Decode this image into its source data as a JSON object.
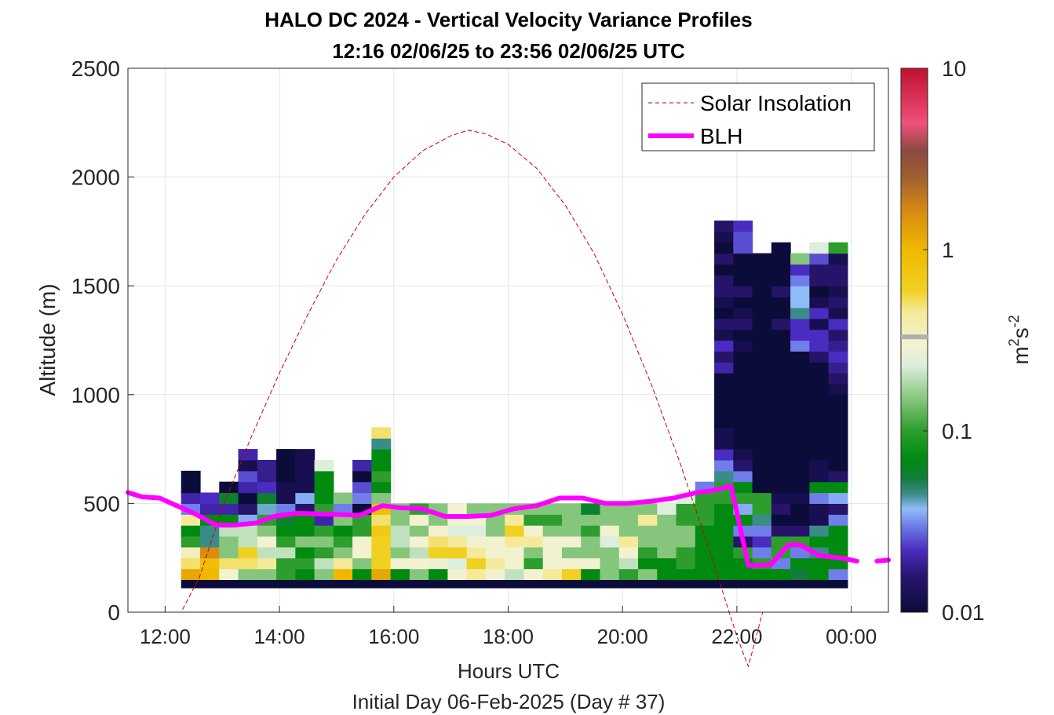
{
  "chart_data": {
    "type": "heatmap",
    "title": "HALO DC 2024 - Vertical Velocity Variance Profiles",
    "subtitle": "12:16 02/06/25 to 23:56 02/06/25  UTC",
    "xlabel": "Hours UTC",
    "xlabel2": "Initial Day 06-Feb-2025 (Day # 37)",
    "ylabel": "Altitude (m)",
    "xlim": [
      11.35,
      24.65
    ],
    "ylim": [
      0,
      2500
    ],
    "x_ticks": [
      {
        "value": 12,
        "label": "12:00"
      },
      {
        "value": 14,
        "label": "14:00"
      },
      {
        "value": 16,
        "label": "16:00"
      },
      {
        "value": 18,
        "label": "18:00"
      },
      {
        "value": 20,
        "label": "20:00"
      },
      {
        "value": 22,
        "label": "22:00"
      },
      {
        "value": 24,
        "label": "00:00"
      }
    ],
    "y_ticks": [
      {
        "value": 0,
        "label": "0"
      },
      {
        "value": 500,
        "label": "500"
      },
      {
        "value": 1000,
        "label": "1000"
      },
      {
        "value": 1500,
        "label": "1500"
      },
      {
        "value": 2000,
        "label": "2000"
      },
      {
        "value": 2500,
        "label": "2500"
      }
    ],
    "grid": true,
    "colorbar": {
      "label_base": "m",
      "label_exp1": "2",
      "label_mid": "s",
      "label_exp2": "-2",
      "scale": "log",
      "range": [
        0.01,
        10
      ],
      "ticks": [
        {
          "value": 0.01,
          "label": "0.01"
        },
        {
          "value": 0.1,
          "label": "0.1"
        },
        {
          "value": 1,
          "label": "1"
        },
        {
          "value": 10,
          "label": "10"
        }
      ],
      "color_stops": [
        {
          "v": 0.01,
          "c": "#0b0c3a"
        },
        {
          "v": 0.016,
          "c": "#2a1570"
        },
        {
          "v": 0.022,
          "c": "#4a2cc0"
        },
        {
          "v": 0.03,
          "c": "#6f7ee8"
        },
        {
          "v": 0.037,
          "c": "#8fbcf7"
        },
        {
          "v": 0.045,
          "c": "#3a8c88"
        },
        {
          "v": 0.055,
          "c": "#127c3a"
        },
        {
          "v": 0.07,
          "c": "#008a10"
        },
        {
          "v": 0.1,
          "c": "#2d9e2d"
        },
        {
          "v": 0.15,
          "c": "#85c67c"
        },
        {
          "v": 0.23,
          "c": "#dceedc"
        },
        {
          "v": 0.3,
          "c": "#f2f2d0"
        },
        {
          "v": 0.45,
          "c": "#f5ea9a"
        },
        {
          "v": 0.6,
          "c": "#f0d020"
        },
        {
          "v": 1.0,
          "c": "#f0b800"
        },
        {
          "v": 1.6,
          "c": "#d98c10"
        },
        {
          "v": 2.5,
          "c": "#a06030"
        },
        {
          "v": 3.5,
          "c": "#8a4a40"
        },
        {
          "v": 5.0,
          "c": "#f0507a"
        },
        {
          "v": 10.0,
          "c": "#c01030"
        }
      ],
      "gray_mark_value": 0.33,
      "gray_mark_color": "#b0b0b0"
    },
    "legend_position": "top-right",
    "legend": [
      {
        "name": "Solar Insolation",
        "style": "dashed",
        "color": "#cc0000"
      },
      {
        "name": "BLH",
        "style": "solid-thick",
        "color": "#ff00ff"
      }
    ],
    "series": [
      {
        "name": "Solar Insolation",
        "color": "#cc0000",
        "x": [
          11.35,
          12.28,
          12.6,
          13.0,
          13.5,
          14.0,
          14.5,
          15.0,
          15.5,
          16.0,
          16.5,
          17.0,
          17.3,
          17.6,
          18.0,
          18.5,
          19.0,
          19.5,
          20.0,
          20.5,
          21.0,
          21.5,
          22.0,
          22.2,
          22.45,
          24.65
        ],
        "y": [
          0,
          0,
          160,
          480,
          800,
          1100,
          1370,
          1620,
          1830,
          2000,
          2120,
          2190,
          2215,
          2200,
          2150,
          2040,
          1870,
          1650,
          1370,
          1050,
          690,
          300,
          -110,
          -250,
          0,
          0
        ]
      },
      {
        "name": "BLH",
        "color": "#ff00ff",
        "x": [
          11.35,
          11.6,
          11.9,
          12.5,
          12.9,
          13.2,
          13.6,
          13.9,
          14.3,
          14.9,
          15.4,
          15.8,
          16.1,
          16.5,
          16.9,
          17.3,
          17.7,
          18.1,
          18.5,
          18.9,
          19.3,
          19.7,
          20.1,
          20.5,
          20.9,
          21.3,
          21.6,
          21.9,
          22.2,
          22.45,
          22.6,
          22.9,
          23.1,
          23.45,
          23.8,
          24.1
        ],
        "y": [
          550,
          530,
          525,
          455,
          400,
          400,
          410,
          440,
          455,
          450,
          445,
          490,
          480,
          475,
          440,
          440,
          445,
          475,
          490,
          525,
          525,
          500,
          500,
          510,
          525,
          550,
          560,
          580,
          215,
          215,
          220,
          310,
          310,
          260,
          250,
          235
        ]
      },
      {
        "name": "BLH-end",
        "color": "#ff00ff",
        "x": [
          24.45,
          24.65
        ],
        "y": [
          235,
          240
        ]
      }
    ],
    "heatmap": {
      "x_start": 12.28,
      "column_width_hours": 0.333,
      "base_row_altitude": [
        110,
        150
      ],
      "base_row_value": 0.01,
      "row_height_m": 50,
      "row_start_m": 150,
      "columns": [
        {
          "col": 0,
          "values": [
            1.2,
            0.5,
            0.35,
            0.1,
            0.07,
            0.45,
            0.03,
            0.02,
            0.01,
            0.01
          ]
        },
        {
          "col": 1,
          "values": [
            1.0,
            0.9,
            1.6,
            0.045,
            0.045,
            0.07,
            0.02,
            0.022
          ]
        },
        {
          "col": 2,
          "values": [
            0.3,
            0.5,
            0.15,
            0.15,
            0.2,
            0.07,
            0.02,
            0.06,
            0.01
          ]
        },
        {
          "col": 3,
          "values": [
            0.15,
            0.5,
            0.6,
            0.2,
            0.2,
            0.035,
            0.015,
            0.01,
            0.02,
            0.025,
            0.012,
            0.02
          ]
        },
        {
          "col": 4,
          "values": [
            0.15,
            0.45,
            0.2,
            0.3,
            0.15,
            0.1,
            0.04,
            0.06,
            0.022,
            0.018,
            0.018
          ]
        },
        {
          "col": 5,
          "values": [
            0.1,
            0.1,
            0.2,
            0.1,
            0.07,
            0.06,
            0.03,
            0.012,
            0.012,
            0.01,
            0.01,
            0.01
          ]
        },
        {
          "col": 6,
          "values": [
            0.07,
            0.1,
            0.07,
            0.15,
            0.07,
            0.07,
            0.015,
            0.035,
            0.012,
            0.012,
            0.012,
            0.012
          ]
        },
        {
          "col": 7,
          "values": [
            0.15,
            0.2,
            0.1,
            0.15,
            0.1,
            0.02,
            0.1,
            0.07,
            0.07,
            0.07,
            0.23
          ]
        },
        {
          "col": 8,
          "values": [
            1.0,
            0.45,
            0.15,
            0.1,
            0.07,
            0.15,
            0.03,
            0.15
          ]
        },
        {
          "col": 9,
          "values": [
            0.07,
            0.15,
            0.3,
            0.3,
            0.1,
            0.1,
            0.01,
            0.03,
            0.025,
            0.01,
            0.02
          ]
        },
        {
          "col": 10,
          "values": [
            1.2,
            0.6,
            0.6,
            0.6,
            0.7,
            0.5,
            0.9,
            0.15,
            0.07,
            0.1,
            0.07,
            0.07,
            0.045,
            0.5
          ]
        },
        {
          "col": 11,
          "values": [
            0.07,
            0.3,
            0.15,
            0.2,
            0.2,
            0.15,
            0.15
          ]
        },
        {
          "col": 12,
          "values": [
            0.15,
            0.3,
            0.2,
            0.3,
            0.15,
            0.3,
            0.1
          ]
        },
        {
          "col": 13,
          "values": [
            0.07,
            0.28,
            0.6,
            0.5,
            0.3,
            0.15,
            0.15
          ]
        },
        {
          "col": 14,
          "values": [
            0.3,
            0.23,
            0.6,
            0.45,
            0.23,
            0.3,
            0.3
          ]
        },
        {
          "col": 15,
          "values": [
            0.45,
            0.6,
            0.45,
            0.3,
            0.23,
            0.3,
            0.15
          ]
        },
        {
          "col": 16,
          "values": [
            0.3,
            0.45,
            0.3,
            0.3,
            0.15,
            0.15,
            0.15
          ]
        },
        {
          "col": 17,
          "values": [
            0.2,
            0.3,
            0.3,
            0.45,
            0.6,
            0.45,
            0.15
          ]
        },
        {
          "col": 18,
          "values": [
            0.3,
            0.1,
            0.15,
            0.45,
            0.3,
            0.1,
            0.15
          ]
        },
        {
          "col": 19,
          "values": [
            0.45,
            0.3,
            0.3,
            0.3,
            0.15,
            0.1,
            0.15
          ]
        },
        {
          "col": 20,
          "values": [
            0.6,
            0.3,
            0.15,
            0.3,
            0.15,
            0.15,
            0.15
          ]
        },
        {
          "col": 21,
          "values": [
            0.07,
            0.3,
            0.15,
            0.15,
            0.1,
            0.15,
            0.06
          ]
        },
        {
          "col": 22,
          "values": [
            0.15,
            0.15,
            0.15,
            0.23,
            0.3,
            0.15,
            0.15
          ]
        },
        {
          "col": 23,
          "values": [
            0.1,
            0.2,
            0.3,
            0.45,
            0.15,
            0.15,
            0.15
          ]
        },
        {
          "col": 24,
          "values": [
            0.15,
            0.07,
            0.1,
            0.15,
            0.15,
            0.45,
            0.15
          ]
        },
        {
          "col": 25,
          "values": [
            0.07,
            0.07,
            0.15,
            0.15,
            0.15,
            0.15,
            0.23
          ]
        },
        {
          "col": 26,
          "values": [
            0.07,
            0.1,
            0.1,
            0.15,
            0.15,
            0.1,
            0.1,
            0.23
          ]
        },
        {
          "col": 27,
          "values": [
            0.07,
            0.07,
            0.07,
            0.07,
            0.07,
            0.1,
            0.1,
            0.1,
            0.03
          ]
        },
        {
          "col": 28,
          "values": [
            0.07,
            0.07,
            0.07,
            0.07,
            0.07,
            0.07,
            0.07,
            0.1,
            0.1,
            0.045,
            0.03,
            0.022,
            0.012,
            0.012,
            0.01,
            0.01,
            0.01,
            0.01,
            0.01,
            0.02,
            0.015,
            0.022,
            0.012,
            0.015,
            0.01,
            0.012,
            0.015,
            0.015,
            0.01,
            0.015,
            0.01,
            0.012,
            0.015
          ]
        },
        {
          "col": 29,
          "values": [
            0.07,
            0.07,
            0.1,
            0.015,
            0.03,
            0.07,
            0.035,
            0.1,
            0.07,
            0.03,
            0.015,
            0.012,
            0.01,
            0.01,
            0.01,
            0.01,
            0.01,
            0.01,
            0.01,
            0.01,
            0.01,
            0.012,
            0.01,
            0.015,
            0.012,
            0.01,
            0.015,
            0.01,
            0.01,
            0.01,
            0.025,
            0.025,
            0.022
          ]
        },
        {
          "col": 30,
          "values": [
            0.07,
            0.1,
            0.03,
            0.022,
            0.03,
            0.045,
            0.1,
            0.1,
            0.01,
            0.01,
            0.01,
            0.01,
            0.01,
            0.01,
            0.01,
            0.01,
            0.01,
            0.01,
            0.01,
            0.01,
            0.01,
            0.01,
            0.01,
            0.01,
            0.01,
            0.01,
            0.01,
            0.01,
            0.01,
            0.01
          ]
        },
        {
          "col": 31,
          "values": [
            0.07,
            0.03,
            0.1,
            0.1,
            0.015,
            0.01,
            0.015,
            0.012,
            0.01,
            0.01,
            0.01,
            0.01,
            0.01,
            0.01,
            0.01,
            0.01,
            0.01,
            0.01,
            0.01,
            0.01,
            0.01,
            0.01,
            0.01,
            0.015,
            0.01,
            0.01,
            0.015,
            0.01,
            0.01,
            0.01,
            0.01
          ]
        },
        {
          "col": 32,
          "values": [
            0.055,
            0.07,
            0.03,
            0.1,
            0.015,
            0.01,
            0.01,
            0.012,
            0.01,
            0.01,
            0.01,
            0.01,
            0.01,
            0.01,
            0.01,
            0.01,
            0.01,
            0.01,
            0.01,
            0.01,
            0.01,
            0.03,
            0.022,
            0.022,
            0.045,
            0.037,
            0.037,
            0.03,
            0.022,
            0.15
          ]
        },
        {
          "col": 33,
          "values": [
            0.07,
            0.07,
            0.045,
            0.07,
            0.045,
            0.012,
            0.012,
            0.03,
            0.07,
            0.012,
            0.012,
            0.01,
            0.01,
            0.01,
            0.01,
            0.01,
            0.01,
            0.01,
            0.01,
            0.01,
            0.015,
            0.022,
            0.022,
            0.012,
            0.022,
            0.012,
            0.01,
            0.015,
            0.015,
            0.025,
            0.23
          ]
        },
        {
          "col": 34,
          "values": [
            0.03,
            0.07,
            0.07,
            0.07,
            0.07,
            0.03,
            0.015,
            0.035,
            0.07,
            0.015,
            0.01,
            0.01,
            0.01,
            0.01,
            0.01,
            0.01,
            0.01,
            0.012,
            0.015,
            0.018,
            0.022,
            0.018,
            0.015,
            0.022,
            0.012,
            0.015,
            0.012,
            0.015,
            0.015,
            0.012,
            0.1
          ]
        }
      ]
    }
  }
}
